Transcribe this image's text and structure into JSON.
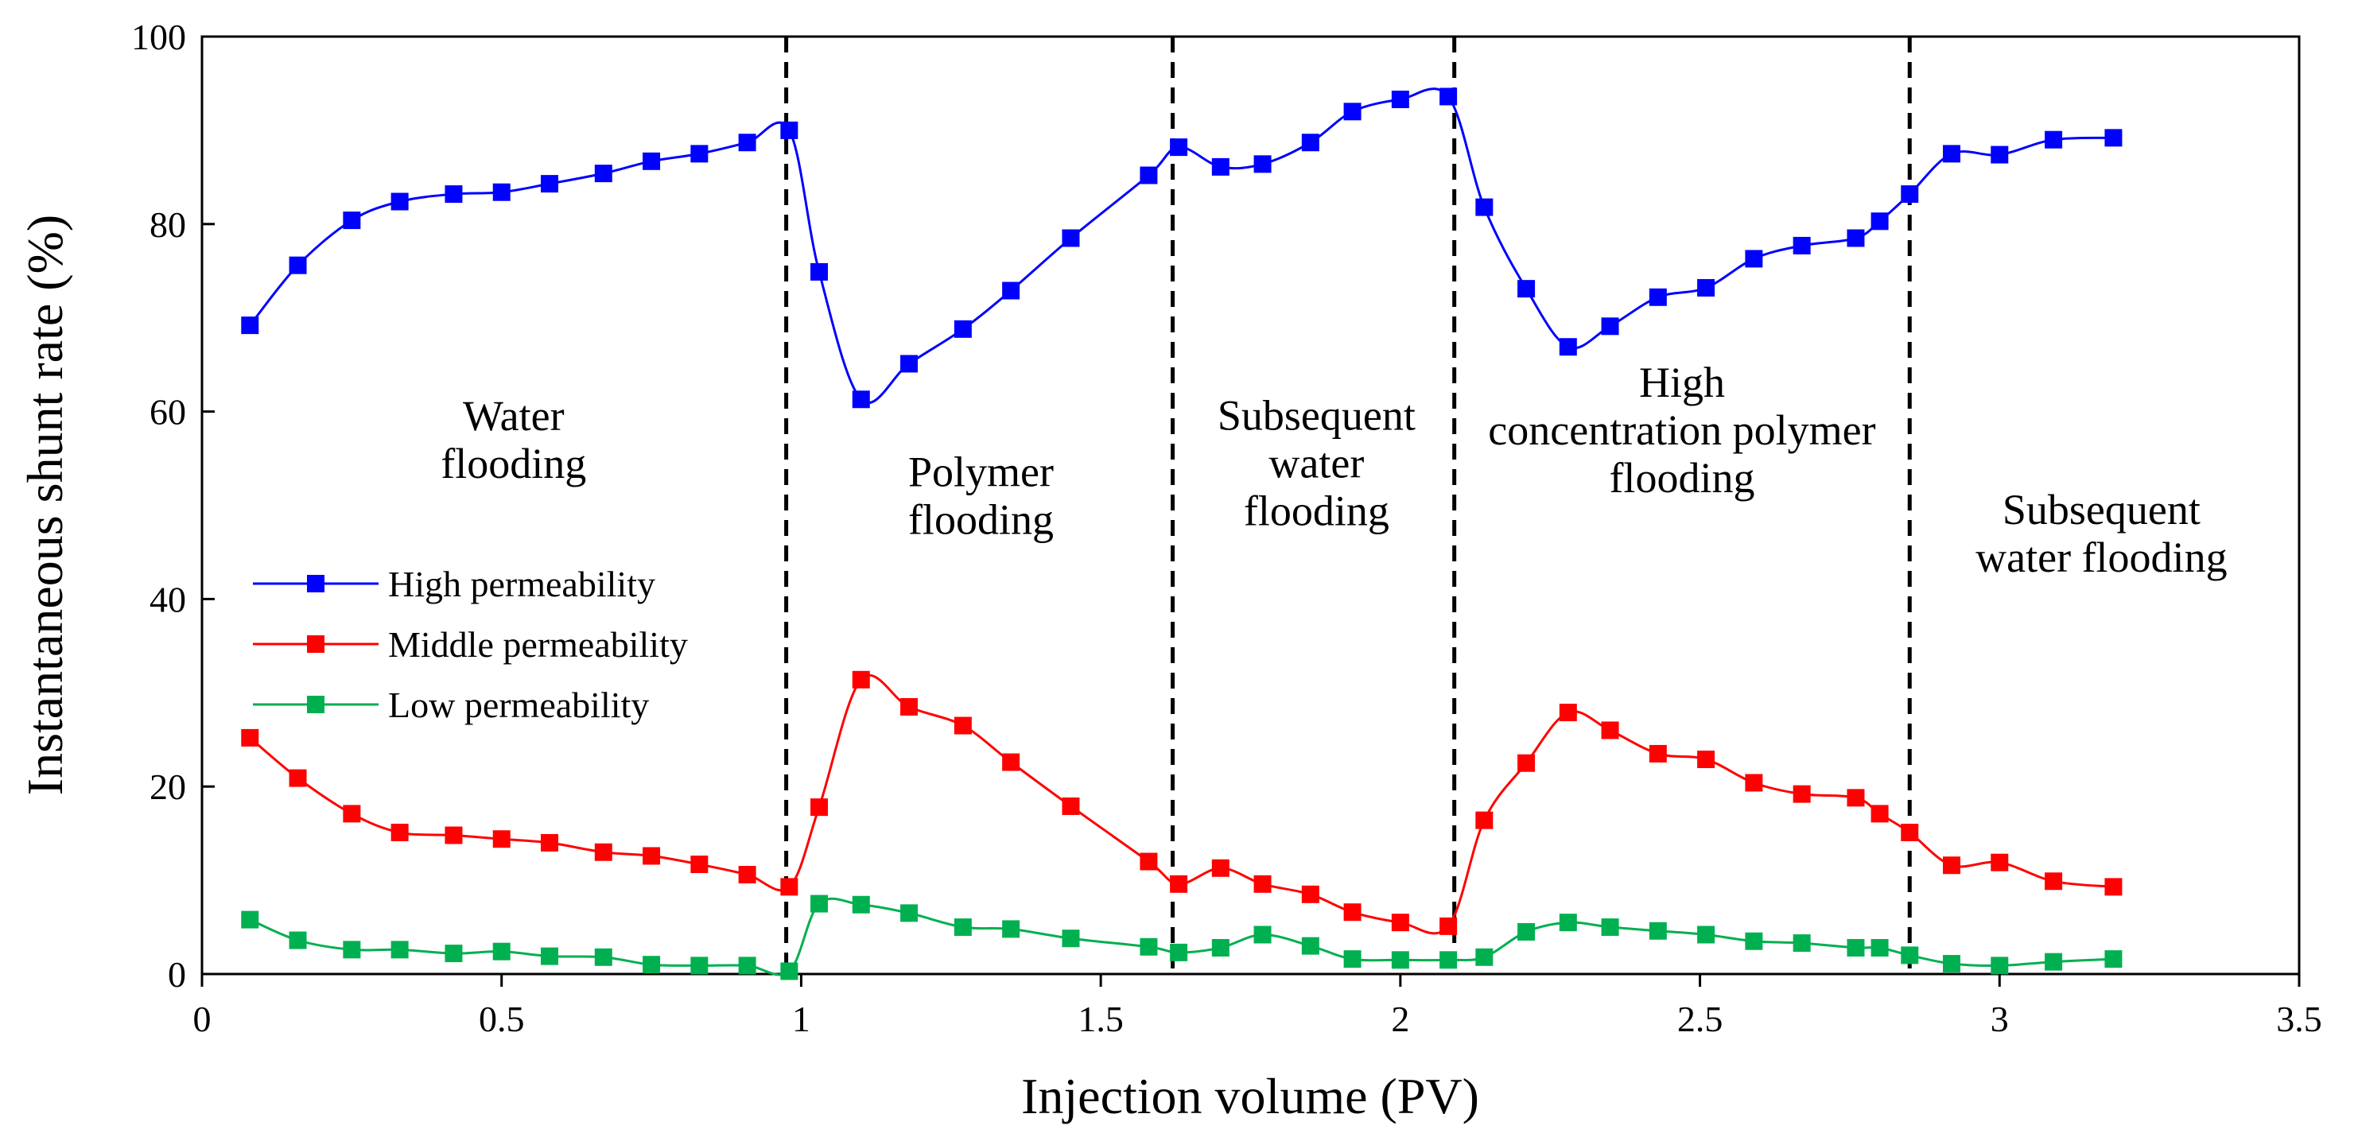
{
  "chart_data": {
    "type": "line",
    "xlabel": "Injection volume (PV)",
    "ylabel": "Instantaneous shunt rate (%)",
    "xlim": [
      0,
      3.5
    ],
    "ylim": [
      0,
      100
    ],
    "xticks": [
      0,
      0.5,
      1,
      1.5,
      2,
      2.5,
      3,
      3.5
    ],
    "xtick_labels": [
      "0",
      "0.5",
      "1",
      "1.5",
      "2",
      "2.5",
      "3",
      "3.5"
    ],
    "yticks": [
      0,
      20,
      40,
      60,
      80,
      100
    ],
    "ytick_labels": [
      "0",
      "20",
      "40",
      "60",
      "80",
      "100"
    ],
    "grid": false,
    "legend_position": "left",
    "series": [
      {
        "name": "High permeability",
        "color": "#0000ff",
        "x": [
          0.08,
          0.16,
          0.25,
          0.33,
          0.42,
          0.5,
          0.58,
          0.67,
          0.75,
          0.83,
          0.91,
          0.98,
          1.03,
          1.1,
          1.18,
          1.27,
          1.35,
          1.45,
          1.58,
          1.63,
          1.7,
          1.77,
          1.85,
          1.92,
          2.0,
          2.08,
          2.14,
          2.21,
          2.28,
          2.35,
          2.43,
          2.51,
          2.59,
          2.67,
          2.76,
          2.8,
          2.85,
          2.92,
          3.0,
          3.09,
          3.19
        ],
        "y": [
          69.2,
          75.6,
          80.4,
          82.4,
          83.2,
          83.4,
          84.3,
          85.4,
          86.7,
          87.5,
          88.7,
          90.0,
          74.9,
          61.3,
          65.1,
          68.8,
          72.9,
          78.5,
          85.2,
          88.2,
          86.1,
          86.4,
          88.7,
          92.0,
          93.3,
          93.6,
          81.8,
          73.1,
          66.9,
          69.1,
          72.2,
          73.2,
          76.3,
          77.7,
          78.5,
          80.3,
          83.2,
          87.5,
          87.4,
          89.0,
          89.2
        ]
      },
      {
        "name": "Middle permeability",
        "color": "#ff0000",
        "x": [
          0.08,
          0.16,
          0.25,
          0.33,
          0.42,
          0.5,
          0.58,
          0.67,
          0.75,
          0.83,
          0.91,
          0.98,
          1.03,
          1.1,
          1.18,
          1.27,
          1.35,
          1.45,
          1.58,
          1.63,
          1.7,
          1.77,
          1.85,
          1.92,
          2.0,
          2.08,
          2.14,
          2.21,
          2.28,
          2.35,
          2.43,
          2.51,
          2.59,
          2.67,
          2.76,
          2.8,
          2.85,
          2.92,
          3.0,
          3.09,
          3.19
        ],
        "y": [
          25.2,
          20.9,
          17.1,
          15.1,
          14.8,
          14.4,
          14.0,
          13.0,
          12.6,
          11.7,
          10.6,
          9.3,
          17.8,
          31.4,
          28.5,
          26.5,
          22.6,
          17.9,
          12.0,
          9.6,
          11.3,
          9.6,
          8.5,
          6.6,
          5.5,
          5.1,
          16.4,
          22.5,
          27.9,
          26.0,
          23.5,
          22.9,
          20.4,
          19.2,
          18.8,
          17.1,
          15.1,
          11.6,
          11.9,
          9.9,
          9.3
        ]
      },
      {
        "name": "Low permeability",
        "color": "#00b050",
        "x": [
          0.08,
          0.16,
          0.25,
          0.33,
          0.42,
          0.5,
          0.58,
          0.67,
          0.75,
          0.83,
          0.91,
          0.98,
          1.03,
          1.1,
          1.18,
          1.27,
          1.35,
          1.45,
          1.58,
          1.63,
          1.7,
          1.77,
          1.85,
          1.92,
          2.0,
          2.08,
          2.14,
          2.21,
          2.28,
          2.35,
          2.43,
          2.51,
          2.59,
          2.67,
          2.76,
          2.8,
          2.85,
          2.92,
          3.0,
          3.09,
          3.19
        ],
        "y": [
          5.8,
          3.6,
          2.6,
          2.6,
          2.2,
          2.4,
          1.9,
          1.8,
          1.0,
          0.9,
          0.9,
          0.3,
          7.5,
          7.4,
          6.5,
          5.0,
          4.8,
          3.8,
          2.9,
          2.3,
          2.8,
          4.2,
          3.0,
          1.6,
          1.5,
          1.5,
          1.8,
          4.5,
          5.5,
          5.0,
          4.6,
          4.2,
          3.5,
          3.3,
          2.8,
          2.8,
          2.0,
          1.1,
          0.9,
          1.3,
          1.6
        ]
      }
    ],
    "phase_dividers": [
      0.975,
      1.62,
      2.09,
      2.85
    ],
    "phase_labels": [
      {
        "lines": [
          "Water",
          "flooding"
        ],
        "x": 0.52,
        "y": 57
      },
      {
        "lines": [
          "Polymer",
          "flooding"
        ],
        "x": 1.3,
        "y": 51
      },
      {
        "lines": [
          "Subsequent",
          "water",
          "flooding"
        ],
        "x": 1.86,
        "y": 54.5
      },
      {
        "lines": [
          "High",
          "concentration polymer",
          "flooding"
        ],
        "x": 2.47,
        "y": 58
      },
      {
        "lines": [
          "Subsequent",
          "water flooding"
        ],
        "x": 3.17,
        "y": 47
      }
    ]
  }
}
